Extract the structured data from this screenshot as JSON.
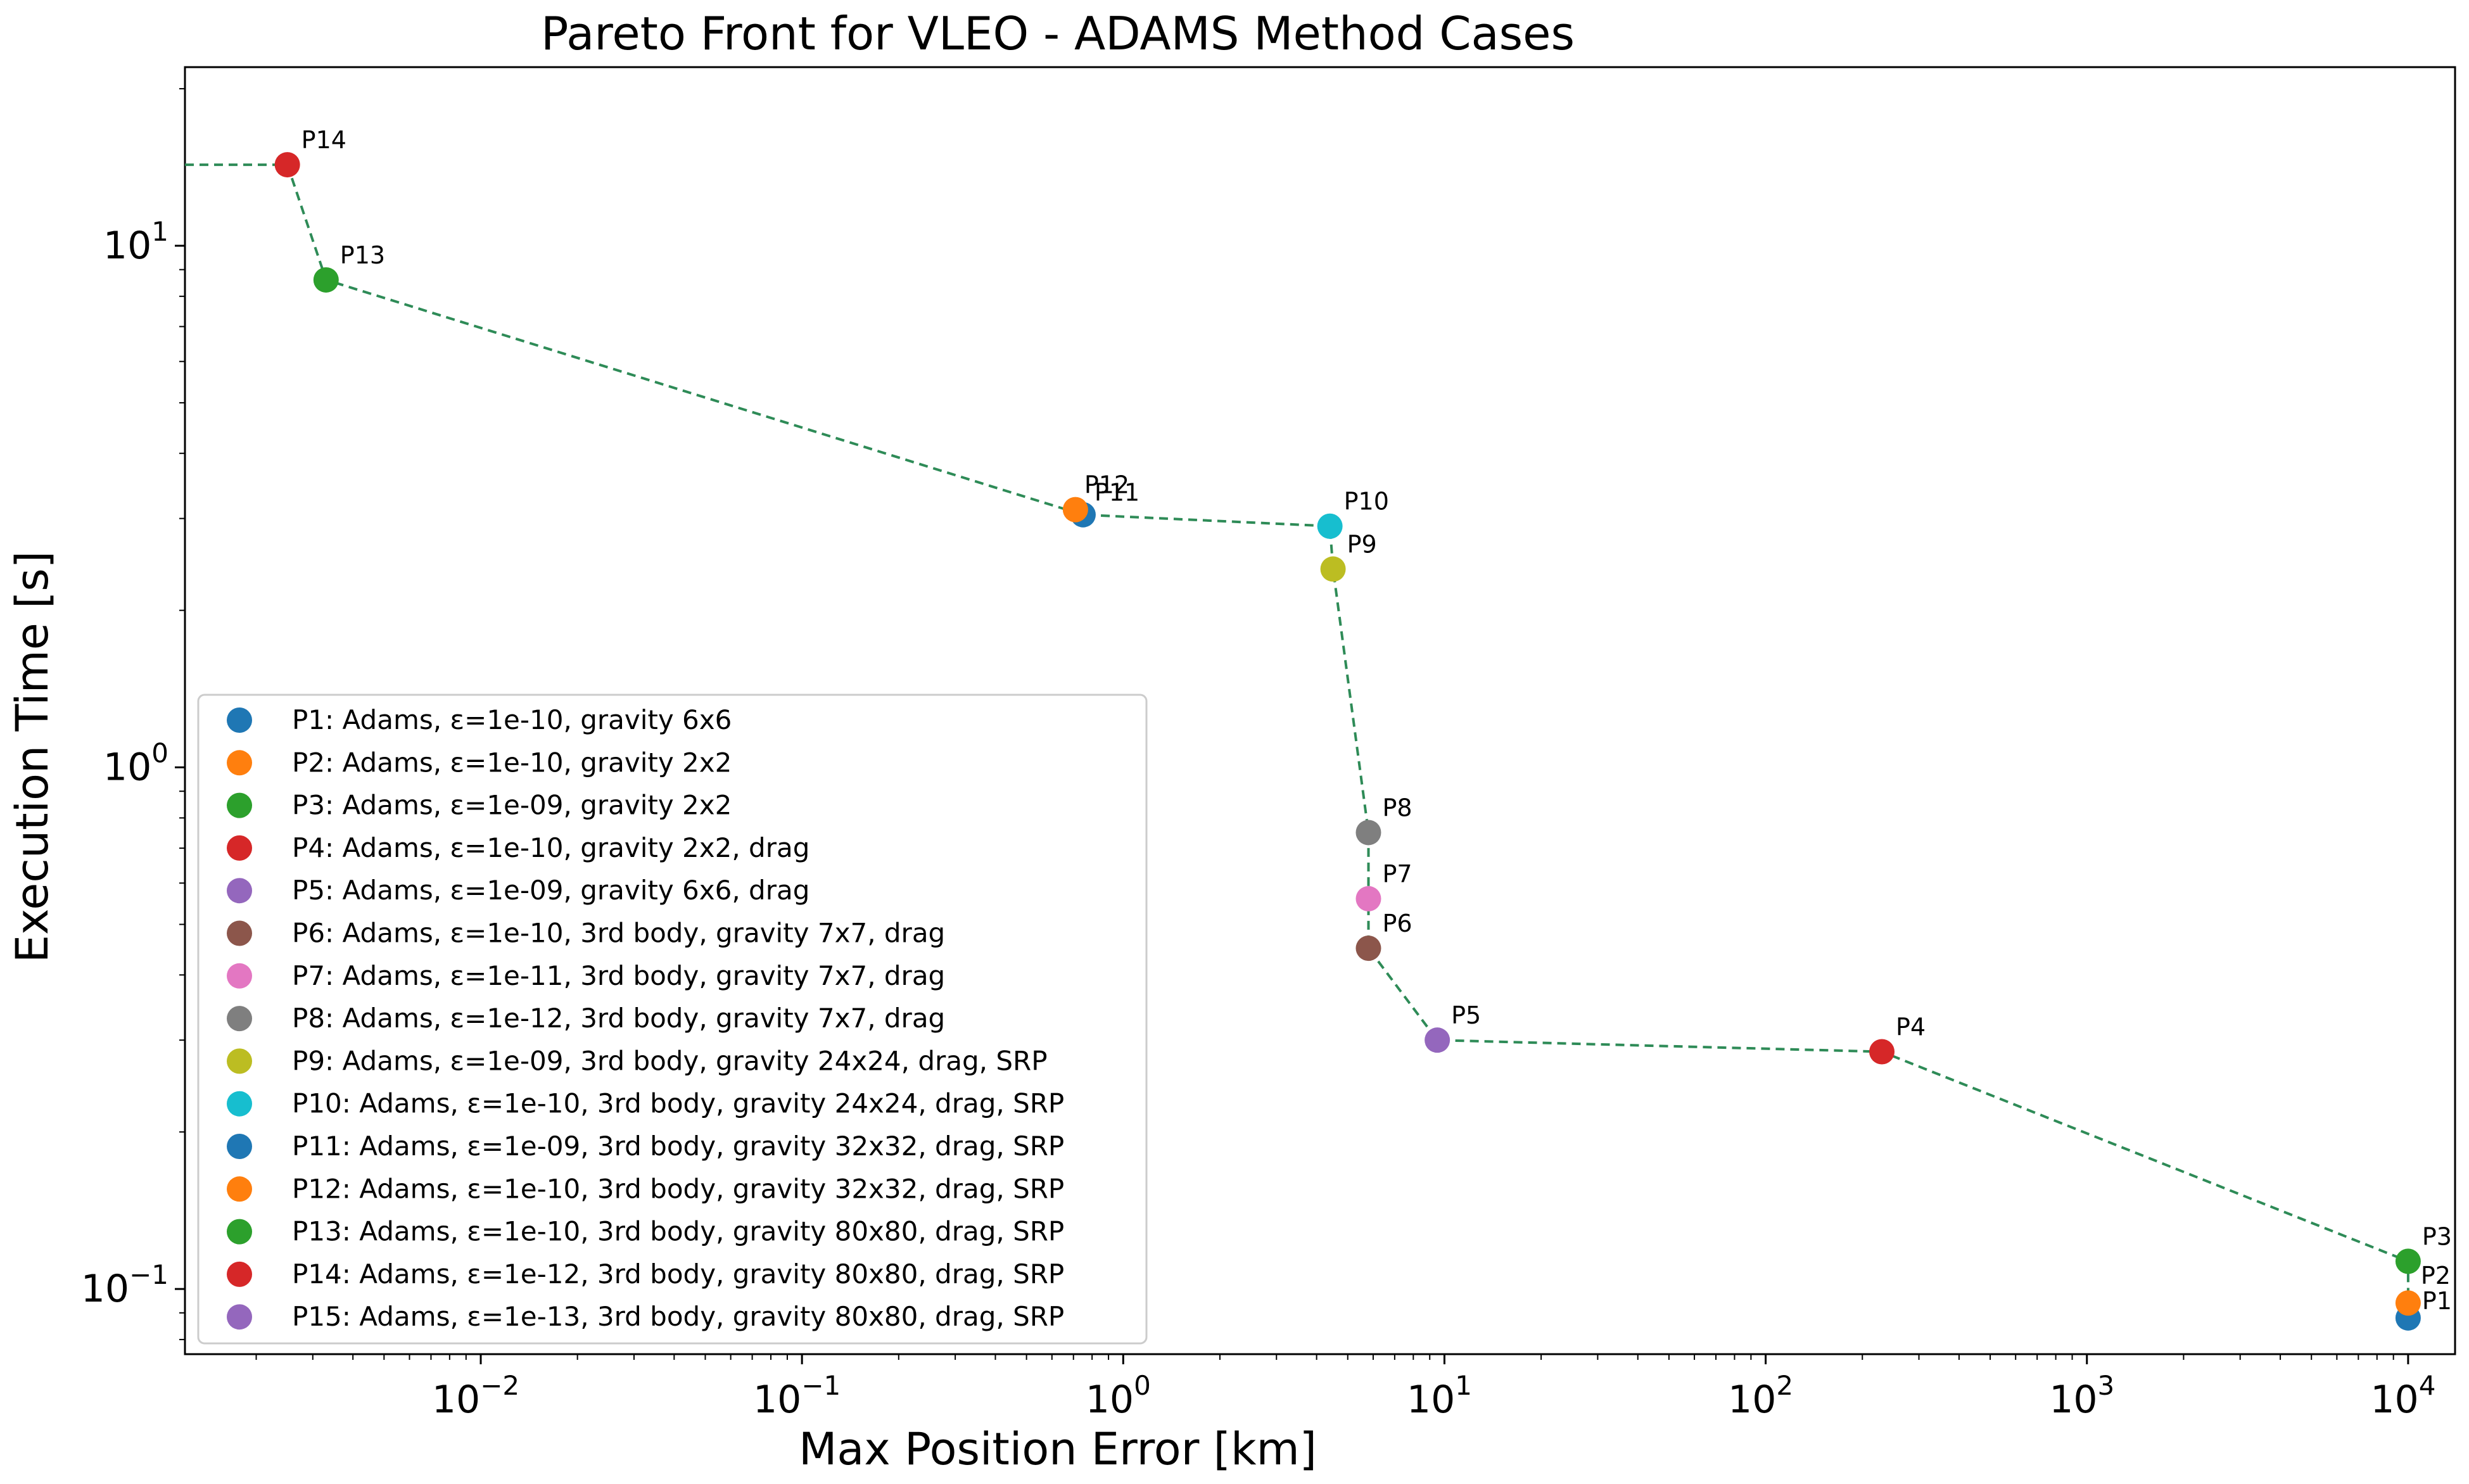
{
  "chart_data": {
    "type": "scatter",
    "title": "Pareto Front for VLEO - ADAMS Method Cases",
    "xlabel": "Max Position Error [km]",
    "ylabel": "Execution Time [s]",
    "xscale": "log",
    "yscale": "log",
    "xlim": [
      0.0012,
      14000
    ],
    "ylim": [
      0.075,
      22
    ],
    "grid": false,
    "legend_loc": "lower-left",
    "xticks": [
      {
        "base": "10",
        "exp": "−2"
      },
      {
        "base": "10",
        "exp": "−1"
      },
      {
        "base": "10",
        "exp": "0"
      },
      {
        "base": "10",
        "exp": "1"
      },
      {
        "base": "10",
        "exp": "2"
      },
      {
        "base": "10",
        "exp": "3"
      },
      {
        "base": "10",
        "exp": "4"
      }
    ],
    "yticks": [
      {
        "base": "10",
        "exp": "−1"
      },
      {
        "base": "10",
        "exp": "0"
      },
      {
        "base": "10",
        "exp": "1"
      }
    ],
    "front_line": {
      "style": "dashed",
      "color": "#2e8b57",
      "x": [
        0.0012,
        0.0025,
        0.0033,
        0.75,
        4.4,
        4.5,
        5.8,
        5.8,
        5.8,
        9.5,
        230,
        10000,
        10000,
        10000
      ],
      "y": [
        14.3,
        14.3,
        8.6,
        3.05,
        2.9,
        2.4,
        0.75,
        0.56,
        0.45,
        0.3,
        0.285,
        0.113,
        0.094,
        0.088
      ]
    },
    "points": [
      {
        "name": "P1",
        "legend": "P1: Adams, ε=1e-10, gravity 6x6",
        "x": 10000,
        "y": 0.088,
        "color": "#1f77b4",
        "label_side": "right-up"
      },
      {
        "name": "P2",
        "legend": "P2: Adams, ε=1e-10, gravity 2x2",
        "x": 10000,
        "y": 0.094,
        "color": "#ff7f0e",
        "label_side": "right-up"
      },
      {
        "name": "P3",
        "legend": "P3: Adams, ε=1e-09, gravity 2x2",
        "x": 10000,
        "y": 0.113,
        "color": "#2ca02c",
        "label_side": "right-up"
      },
      {
        "name": "P4",
        "legend": "P4: Adams, ε=1e-10, gravity 2x2, drag",
        "x": 230,
        "y": 0.285,
        "color": "#d62728",
        "label_side": "right-up"
      },
      {
        "name": "P5",
        "legend": "P5: Adams, ε=1e-09, gravity 6x6, drag",
        "x": 9.5,
        "y": 0.3,
        "color": "#9467bd",
        "label_side": "right-up"
      },
      {
        "name": "P6",
        "legend": "P6: Adams, ε=1e-10, 3rd body, gravity 7x7, drag",
        "x": 5.8,
        "y": 0.45,
        "color": "#8c564b",
        "label_side": "right-up"
      },
      {
        "name": "P7",
        "legend": "P7: Adams, ε=1e-11, 3rd body, gravity 7x7, drag",
        "x": 5.8,
        "y": 0.56,
        "color": "#e377c2",
        "label_side": "right-up"
      },
      {
        "name": "P8",
        "legend": "P8: Adams, ε=1e-12, 3rd body, gravity 7x7, drag",
        "x": 5.8,
        "y": 0.75,
        "color": "#7f7f7f",
        "label_side": "right-up"
      },
      {
        "name": "P9",
        "legend": "P9: Adams, ε=1e-09, 3rd body, gravity 24x24, drag, SRP",
        "x": 4.5,
        "y": 2.4,
        "color": "#bcbd22",
        "label_side": "right-up"
      },
      {
        "name": "P10",
        "legend": "P10: Adams, ε=1e-10, 3rd body, gravity 24x24, drag, SRP",
        "x": 4.4,
        "y": 2.9,
        "color": "#17becf",
        "label_side": "right-up"
      },
      {
        "name": "P11",
        "legend": "P11: Adams, ε=1e-09, 3rd body, gravity 32x32, drag, SRP",
        "x": 0.75,
        "y": 3.05,
        "color": "#1f77b4",
        "label_side": "right-up"
      },
      {
        "name": "P12",
        "legend": "P12: Adams, ε=1e-10, 3rd body, gravity 32x32, drag, SRP",
        "x": 0.71,
        "y": 3.12,
        "color": "#ff7f0e",
        "label_side": "right-up"
      },
      {
        "name": "P13",
        "legend": "P13: Adams, ε=1e-10, 3rd body, gravity 80x80, drag, SRP",
        "x": 0.0033,
        "y": 8.6,
        "color": "#2ca02c",
        "label_side": "right-up"
      },
      {
        "name": "P14",
        "legend": "P14: Adams, ε=1e-12, 3rd body, gravity 80x80, drag, SRP",
        "x": 0.0025,
        "y": 14.3,
        "color": "#d62728",
        "label_side": "right-up"
      },
      {
        "name": "P15",
        "legend": "P15: Adams, ε=1e-13, 3rd body, gravity 80x80, drag, SRP",
        "x": null,
        "y": null,
        "color": "#9467bd",
        "label_side": "none"
      }
    ]
  }
}
